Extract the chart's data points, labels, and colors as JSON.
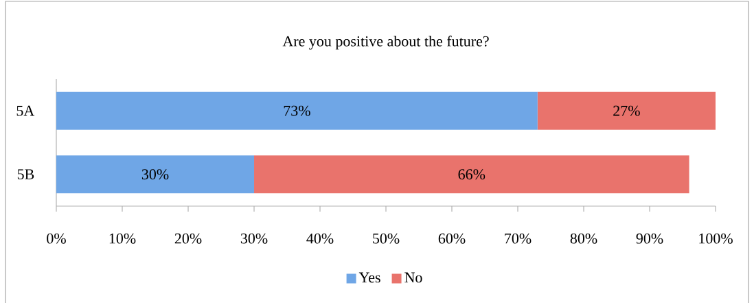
{
  "chart_data": {
    "type": "bar",
    "orientation": "horizontal",
    "stacked": true,
    "title": "Are you positive about the future?",
    "categories": [
      "5A",
      "5B"
    ],
    "series": [
      {
        "name": "Yes",
        "color": "#6fa6e6",
        "values": [
          73,
          30
        ],
        "value_labels": [
          "73%",
          "30%"
        ]
      },
      {
        "name": "No",
        "color": "#e9736c",
        "values": [
          27,
          66
        ],
        "value_labels": [
          "27%",
          "66%"
        ]
      }
    ],
    "xlim": [
      0,
      100
    ],
    "xticks": [
      {
        "value": 0,
        "label": "0%"
      },
      {
        "value": 10,
        "label": "10%"
      },
      {
        "value": 20,
        "label": "20%"
      },
      {
        "value": 30,
        "label": "30%"
      },
      {
        "value": 40,
        "label": "40%"
      },
      {
        "value": 50,
        "label": "50%"
      },
      {
        "value": 60,
        "label": "60%"
      },
      {
        "value": 70,
        "label": "70%"
      },
      {
        "value": 80,
        "label": "80%"
      },
      {
        "value": 90,
        "label": "90%"
      },
      {
        "value": 100,
        "label": "100%"
      }
    ],
    "legend": "bottom"
  }
}
